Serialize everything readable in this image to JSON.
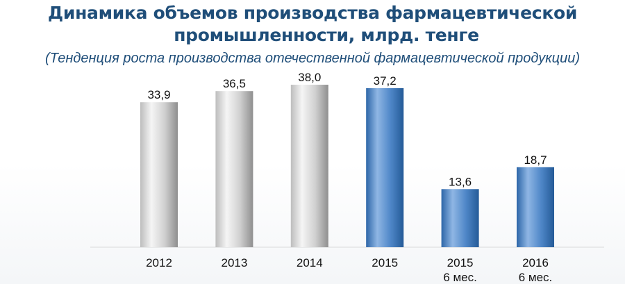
{
  "title_line1": "Динамика объемов производства фармацевтической",
  "title_line2": "промышленности, млрд. тенге",
  "subtitle": "(Тенденция роста производства отечественной фармацевтической продукции)",
  "chart_data": {
    "type": "bar",
    "title": "Динамика объемов производства фармацевтической промышленности, млрд. тенге",
    "subtitle": "(Тенденция роста производства отечественной фармацевтической продукции)",
    "categories": [
      [
        "2012"
      ],
      [
        "2013"
      ],
      [
        "2014"
      ],
      [
        "2015"
      ],
      [
        "2015",
        "6 мес."
      ],
      [
        "2016",
        "6 мес."
      ]
    ],
    "values": [
      33.9,
      36.5,
      38.0,
      37.2,
      13.6,
      18.7
    ],
    "value_labels": [
      "33,9",
      "36,5",
      "38,0",
      "37,2",
      "13,6",
      "18,7"
    ],
    "bar_colors": [
      "silver",
      "silver",
      "silver",
      "blue",
      "blue",
      "blue"
    ],
    "ylim": [
      0,
      40
    ],
    "grid": false,
    "legend": "none",
    "colors": {
      "silver_light": "#f2f2f2",
      "silver_dark": "#9a9a9a",
      "blue_light": "#8db3e2",
      "blue_dark": "#2e6bb0",
      "title": "#1f4e79"
    }
  }
}
